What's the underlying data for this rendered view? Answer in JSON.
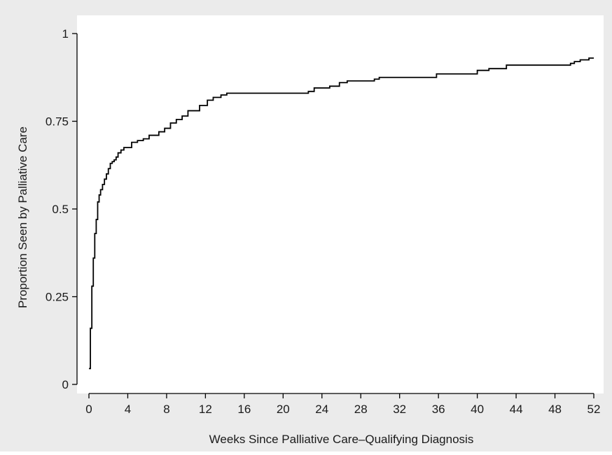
{
  "colors": {
    "outer_background": "#ebebeb",
    "plot_background": "#ffffff",
    "line": "#000000",
    "axis": "#000000"
  },
  "chart_data": {
    "type": "line",
    "step": true,
    "title": "",
    "xlabel": "Weeks Since Palliative Care–Qualifying Diagnosis",
    "ylabel": "Proportion Seen by Palliative Care",
    "xlim": [
      0,
      52
    ],
    "ylim": [
      0,
      1
    ],
    "x_ticks": [
      0,
      4,
      8,
      12,
      16,
      20,
      24,
      28,
      32,
      36,
      40,
      44,
      48,
      52
    ],
    "y_ticks": [
      0,
      0.25,
      0.5,
      0.75,
      1
    ],
    "y_tick_labels": [
      "0",
      "0.25",
      "0.5",
      "0.75",
      "1"
    ],
    "grid": false,
    "legend": "none",
    "series": [
      {
        "x": [
          0,
          0.15,
          0.3,
          0.45,
          0.6,
          0.75,
          0.9,
          1.05,
          1.2,
          1.4,
          1.6,
          1.8,
          2.0,
          2.2,
          2.4,
          2.6,
          2.8,
          3.0,
          3.3,
          3.6,
          4.0,
          4.4,
          5.0,
          5.6,
          6.2,
          7.2,
          7.8,
          8.4,
          9.0,
          9.6,
          10.2,
          11.4,
          12.2,
          12.8,
          13.6,
          14.2,
          21.8,
          22.6,
          23.2,
          24.8,
          25.8,
          26.6,
          29.4,
          29.9,
          35.8,
          40.0,
          41.2,
          43.0,
          49.6,
          50.0,
          50.6,
          51.5,
          52.0
        ],
        "y": [
          0.045,
          0.16,
          0.28,
          0.36,
          0.43,
          0.47,
          0.52,
          0.54,
          0.555,
          0.57,
          0.585,
          0.6,
          0.615,
          0.63,
          0.635,
          0.64,
          0.648,
          0.66,
          0.668,
          0.675,
          0.675,
          0.69,
          0.695,
          0.7,
          0.71,
          0.72,
          0.73,
          0.745,
          0.755,
          0.765,
          0.78,
          0.795,
          0.81,
          0.818,
          0.825,
          0.83,
          0.83,
          0.835,
          0.845,
          0.85,
          0.86,
          0.865,
          0.87,
          0.875,
          0.885,
          0.895,
          0.9,
          0.91,
          0.915,
          0.92,
          0.925,
          0.93,
          0.93
        ]
      }
    ]
  }
}
